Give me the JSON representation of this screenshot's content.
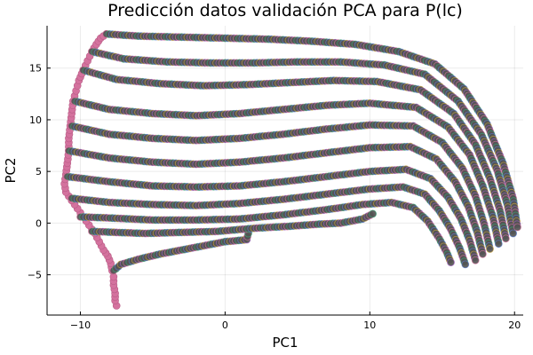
{
  "chart_data": {
    "type": "scatter",
    "title": "Predicción datos validación PCA para P(lc)",
    "xlabel": "PC1",
    "ylabel": "PC2",
    "xlim": [
      -12.3,
      20.6
    ],
    "ylim": [
      -8.9,
      19.1
    ],
    "xticks": [
      -10,
      0,
      10,
      20
    ],
    "yticks": [
      -5,
      0,
      5,
      10,
      15
    ],
    "grid": true,
    "legend": "none",
    "colors": {
      "marker_fill": "#545454",
      "marker_edge": "#2c2c2c",
      "highlight": "#d4729e",
      "rim_colors": [
        "#d4729e",
        "#3aa57a",
        "#5a7fd1",
        "#c9a13e",
        "#a05fc0"
      ],
      "axis": "#000000",
      "background": "#ffffff"
    },
    "series": [
      {
        "x": [
          -7.5,
          -7.6,
          -7.6,
          -7.7,
          -7.7,
          -7.8,
          -7.9,
          -8.1,
          -8.4,
          -8.7,
          -9.0,
          -9.4,
          -9.8,
          -10.2,
          -10.6,
          -11.0,
          -11.1,
          -11.0,
          -10.9,
          -10.8,
          -10.8,
          -10.7,
          -10.6,
          -10.5,
          -10.3,
          -10.1,
          -9.8,
          -9.5,
          -9.2,
          -8.9,
          -8.6,
          -8.2
        ],
        "y": [
          -8.0,
          -7.5,
          -6.8,
          -6.0,
          -5.2,
          -4.6,
          -3.9,
          -3.2,
          -2.6,
          -1.8,
          -1.0,
          -0.2,
          0.6,
          1.4,
          2.2,
          3.0,
          3.8,
          4.7,
          5.8,
          7.0,
          8.2,
          9.4,
          10.6,
          11.8,
          12.8,
          13.8,
          14.8,
          15.7,
          16.6,
          17.3,
          17.9,
          18.3
        ],
        "color": "#d4729e"
      },
      {
        "x": [
          -7.7,
          -7.2,
          -6.0,
          -4.5,
          -3.0,
          -1.5,
          0.0,
          1.5,
          1.6
        ],
        "y": [
          -4.6,
          -4.0,
          -3.5,
          -3.0,
          -2.6,
          -2.2,
          -1.8,
          -1.6,
          -1.0
        ],
        "color": "#545454"
      },
      {
        "x": [
          -9.2,
          -7.5,
          -5.5,
          -3.0,
          -0.5,
          2.0,
          4.5,
          6.5,
          8.0,
          9.5,
          10.2
        ],
        "y": [
          -0.8,
          -0.9,
          -1.0,
          -0.9,
          -0.8,
          -0.5,
          -0.3,
          -0.1,
          0.0,
          0.4,
          0.9
        ],
        "color": "#545454"
      },
      {
        "x": [
          -10.0,
          -8.0,
          -5.0,
          -2.0,
          1.0,
          4.0,
          7.0,
          9.5,
          11.5,
          13.0,
          14.0,
          14.8,
          15.3,
          15.6
        ],
        "y": [
          0.6,
          0.5,
          0.3,
          0.3,
          0.4,
          0.8,
          1.3,
          1.8,
          2.0,
          1.5,
          0.2,
          -1.5,
          -2.8,
          -3.8
        ],
        "color": "#545454"
      },
      {
        "x": [
          -10.6,
          -8.0,
          -5.0,
          -2.0,
          1.0,
          4.0,
          7.0,
          10.0,
          12.3,
          13.8,
          14.8,
          15.6,
          16.2,
          16.6
        ],
        "y": [
          2.4,
          2.0,
          1.8,
          1.7,
          1.9,
          2.3,
          2.8,
          3.3,
          3.5,
          2.8,
          1.2,
          -0.6,
          -2.4,
          -4.0
        ],
        "color": "#545454"
      },
      {
        "x": [
          -10.9,
          -8.0,
          -5.0,
          -2.0,
          1.0,
          4.0,
          7.0,
          10.0,
          12.5,
          14.2,
          15.4,
          16.3,
          16.9,
          17.3
        ],
        "y": [
          4.5,
          4.0,
          3.6,
          3.5,
          3.6,
          4.0,
          4.5,
          5.0,
          5.2,
          4.3,
          2.5,
          0.4,
          -1.7,
          -3.6
        ],
        "color": "#545454"
      },
      {
        "x": [
          -10.8,
          -8.0,
          -5.0,
          -2.0,
          1.0,
          4.0,
          7.0,
          10.0,
          12.8,
          14.6,
          15.9,
          16.8,
          17.4,
          17.8
        ],
        "y": [
          7.0,
          6.3,
          5.9,
          5.7,
          5.9,
          6.3,
          6.8,
          7.3,
          7.4,
          6.2,
          4.0,
          1.6,
          -0.8,
          -3.0
        ],
        "color": "#545454"
      },
      {
        "x": [
          -10.6,
          -8.0,
          -5.0,
          -2.0,
          1.0,
          4.0,
          7.0,
          10.0,
          13.0,
          15.0,
          16.4,
          17.3,
          17.9,
          18.3
        ],
        "y": [
          9.4,
          8.6,
          8.2,
          8.0,
          8.2,
          8.6,
          9.1,
          9.5,
          9.4,
          7.8,
          5.3,
          2.6,
          -0.1,
          -2.5
        ],
        "color": "#545454"
      },
      {
        "x": [
          -10.4,
          -8.0,
          -5.0,
          -2.0,
          1.0,
          4.0,
          7.0,
          10.0,
          13.2,
          15.4,
          16.9,
          17.8,
          18.5,
          18.9
        ],
        "y": [
          11.8,
          11.0,
          10.6,
          10.4,
          10.6,
          11.0,
          11.4,
          11.6,
          11.2,
          9.3,
          6.6,
          3.6,
          0.6,
          -2.0
        ],
        "color": "#545454"
      },
      {
        "x": [
          -9.8,
          -7.5,
          -4.5,
          -1.5,
          1.5,
          4.5,
          7.5,
          10.5,
          13.5,
          15.8,
          17.3,
          18.3,
          19.0,
          19.4
        ],
        "y": [
          14.8,
          13.9,
          13.5,
          13.3,
          13.4,
          13.6,
          13.8,
          13.7,
          12.9,
          10.6,
          7.6,
          4.3,
          1.2,
          -1.5
        ],
        "color": "#545454"
      },
      {
        "x": [
          -9.2,
          -7.0,
          -4.0,
          -1.0,
          2.0,
          5.0,
          8.0,
          11.0,
          13.8,
          16.1,
          17.7,
          18.8,
          19.5,
          19.9
        ],
        "y": [
          16.6,
          15.9,
          15.6,
          15.5,
          15.5,
          15.6,
          15.6,
          15.3,
          14.4,
          11.8,
          8.6,
          5.1,
          1.8,
          -1.0
        ],
        "color": "#545454"
      },
      {
        "x": [
          -8.2,
          -6.0,
          -3.0,
          0.0,
          3.0,
          6.0,
          9.0,
          12.0,
          14.5,
          16.5,
          18.1,
          19.2,
          19.9,
          20.2
        ],
        "y": [
          18.3,
          18.1,
          18.0,
          17.9,
          17.8,
          17.6,
          17.3,
          16.6,
          15.4,
          13.0,
          9.6,
          5.8,
          2.4,
          -0.4
        ],
        "color": "#545454"
      }
    ]
  }
}
